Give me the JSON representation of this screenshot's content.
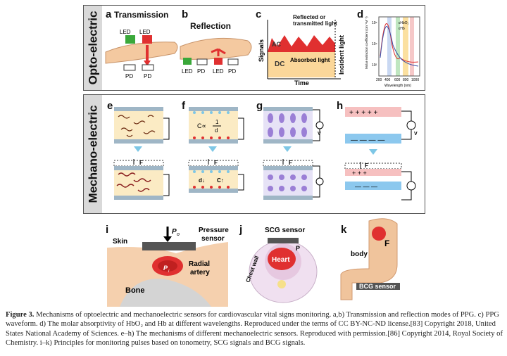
{
  "panels": {
    "opto_title": "Opto-electric",
    "mech_title": "Mechano-electric",
    "a": {
      "letter": "a",
      "title": "Transmission",
      "led1": "LED",
      "led2": "LED",
      "pd1": "PD",
      "pd2": "PD"
    },
    "b": {
      "letter": "b",
      "title": "Reflection",
      "led1": "LED",
      "led2": "LED",
      "pd1": "PD",
      "pd2": "PD"
    },
    "c": {
      "letter": "c",
      "ylabel": "Signals",
      "xlabel": "Time",
      "ac": "AC",
      "dc": "DC",
      "absorbed": "Absorbed light",
      "reflected": "Reflected or transmitted light",
      "incident": "Incident light"
    },
    "d": {
      "letter": "d",
      "ylabel": "Molar extinction coefficient (cm⁻¹M⁻¹)",
      "xlabel": "Wavelength (nm)",
      "xticks": [
        "200",
        "400",
        "600",
        "800",
        "1000"
      ],
      "yticks": [
        "10⁶",
        "10⁴",
        "10²"
      ],
      "legend1": "εHbO₂",
      "legend2": "εHb"
    },
    "e": {
      "letter": "e"
    },
    "f": {
      "letter": "f",
      "formula_c": "C∝",
      "formula_num": "1",
      "formula_den": "d",
      "d_down": "d↓",
      "c_up": "C↑"
    },
    "g": {
      "letter": "g",
      "v": "V"
    },
    "h": {
      "letter": "h",
      "v": "V"
    },
    "force": "F",
    "i": {
      "letter": "i",
      "skin": "Skin",
      "po": "P",
      "po_sub": "o",
      "pressure_sensor": "Pressure sensor",
      "pi": "P",
      "pi_sub": "i",
      "radial_artery": "Radial artery",
      "bone": "Bone"
    },
    "j": {
      "letter": "j",
      "scg": "SCG sensor",
      "heart": "Heart",
      "p": "P",
      "chest": "Chest wall"
    },
    "k": {
      "letter": "k",
      "body": "body",
      "bcg": "BCG sensor",
      "f": "F"
    }
  },
  "caption": {
    "figure": "Figure 3.",
    "text": " Mechanisms of optoelectric and mechanoelectric sensors for cardiovascular vital signs monitoring. a,b) Transmission and reflection modes of PPG. c) PPG waveform. d) The molar absorptivity of HbO₂ and Hb at different wavelengths. Reproduced under the terms of CC BY-NC-ND license.[83] Copyright 2018, United States National Academy of Sciences. e–h) The mechanisms of different mechanoelectric sensors. Reproduced with permission.[86] Copyright 2014, Royal Society of Chemistry. i–k) Principles for monitoring pulses based on tonometry, SCG signals and BCG signals."
  },
  "colors": {
    "red": "#e03030",
    "green": "#3aa83a",
    "skin": "#f4c9a0",
    "blue": "#3a8fd8",
    "purple": "#9b7fd6"
  }
}
